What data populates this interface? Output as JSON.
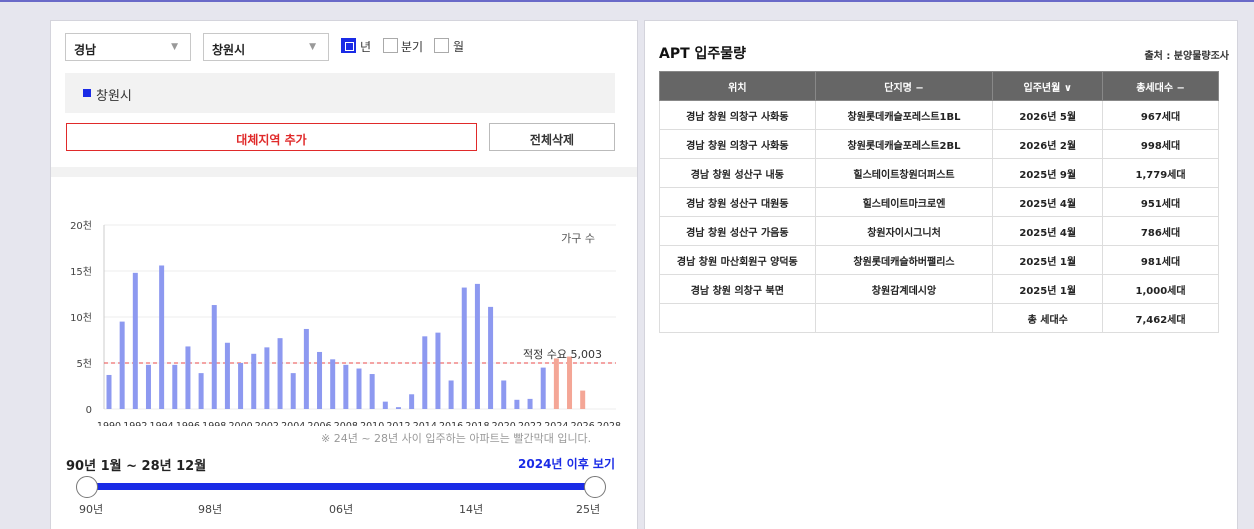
{
  "filters": {
    "province": "경남",
    "city": "창원시",
    "period_options": [
      {
        "label": "년",
        "checked": true
      },
      {
        "label": "분기",
        "checked": false
      },
      {
        "label": "월",
        "checked": false
      }
    ]
  },
  "region_tag": "창원시",
  "buttons": {
    "add_region": "대체지역 추가",
    "clear_all": "전체삭제"
  },
  "chart_data": {
    "type": "bar",
    "legend": "가구 수",
    "y_ticks": [
      "0",
      "5천",
      "10천",
      "15천",
      "20천"
    ],
    "ylim": [
      0,
      20000
    ],
    "x_ticks": [
      "1990",
      "1992",
      "1994",
      "1996",
      "1998",
      "2000",
      "2002",
      "2004",
      "2006",
      "2008",
      "2010",
      "2012",
      "2014",
      "2016",
      "2018",
      "2020",
      "2022",
      "2024",
      "2026",
      "2028"
    ],
    "years": [
      1990,
      1991,
      1992,
      1993,
      1994,
      1995,
      1996,
      1997,
      1998,
      1999,
      2000,
      2001,
      2002,
      2003,
      2004,
      2005,
      2006,
      2007,
      2008,
      2009,
      2010,
      2011,
      2012,
      2013,
      2014,
      2015,
      2016,
      2017,
      2018,
      2019,
      2020,
      2021,
      2022,
      2023,
      2024,
      2025,
      2026
    ],
    "values": [
      3700,
      9500,
      14800,
      4800,
      15600,
      4800,
      6800,
      3900,
      11300,
      7200,
      5000,
      6000,
      6700,
      7700,
      3900,
      8700,
      6200,
      5400,
      4800,
      4400,
      3800,
      800,
      200,
      1600,
      7900,
      8300,
      3100,
      13200,
      13600,
      11100,
      3100,
      1000,
      1100,
      4500,
      5500,
      5700,
      2000
    ],
    "highlight_from_year": 2024,
    "normal_color": "#8d99f0",
    "highlight_color": "#f4a696",
    "reference_line": {
      "value": 5003,
      "label": "적정 수요 5,003",
      "color": "#e84a4a"
    }
  },
  "note": "※ 24년 ~ 28년 사이 입주하는 아파트는 빨간막대 입니다.",
  "range": {
    "title": "90년 1월 ~ 28년 12월",
    "link": "2024년 이후 보기",
    "labels": [
      "90년",
      "98년",
      "06년",
      "14년",
      "25년"
    ]
  },
  "apt": {
    "title": "APT 입주물량",
    "source": "출처 : 분양물량조사",
    "headers": [
      "위치",
      "단지명 −",
      "입주년월 ∨",
      "총세대수 −"
    ],
    "rows": [
      [
        "경남 창원 의창구 사화동",
        "창원롯데캐슬포레스트1BL",
        "2026년 5월",
        "967세대"
      ],
      [
        "경남 창원 의창구 사화동",
        "창원롯데캐슬포레스트2BL",
        "2026년 2월",
        "998세대"
      ],
      [
        "경남 창원 성산구 내동",
        "힐스테이트창원더퍼스트",
        "2025년 9월",
        "1,779세대"
      ],
      [
        "경남 창원 성산구 대원동",
        "힐스테이트마크로엔",
        "2025년 4월",
        "951세대"
      ],
      [
        "경남 창원 성산구 가음동",
        "창원자이시그니처",
        "2025년 4월",
        "786세대"
      ],
      [
        "경남 창원 마산회원구 양덕동",
        "창원롯데캐슬하버팰리스",
        "2025년 1월",
        "981세대"
      ],
      [
        "경남 창원 의창구 북면",
        "창원감계데시앙",
        "2025년 1월",
        "1,000세대"
      ]
    ],
    "total_label": "총 세대수",
    "total_value": "7,462세대"
  }
}
